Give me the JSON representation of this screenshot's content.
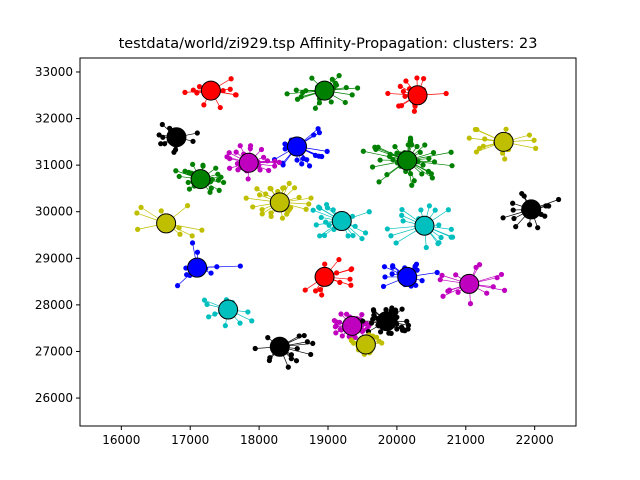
{
  "chart_data": {
    "type": "scatter",
    "title": "testdata/world/zi929.tsp Affinity-Propagation: clusters: 23",
    "xlabel": "",
    "ylabel": "",
    "xlim": [
      15400,
      22600
    ],
    "ylim": [
      25400,
      33300
    ],
    "xticks": [
      16000,
      17000,
      18000,
      19000,
      20000,
      21000,
      22000
    ],
    "yticks": [
      26000,
      27000,
      28000,
      29000,
      30000,
      31000,
      32000,
      33000
    ],
    "grid": false,
    "legend": "none",
    "colors": {
      "red": "#ff0000",
      "green": "#008000",
      "blue": "#0000ff",
      "black": "#000000",
      "magenta": "#bf00bf",
      "olive": "#bfbf00",
      "cyan": "#00bfbf"
    },
    "clusters": [
      {
        "color": "red",
        "center": [
          17300,
          32600
        ],
        "spread": 450,
        "n": 14,
        "seed": 1
      },
      {
        "color": "green",
        "center": [
          18950,
          32600
        ],
        "spread": 550,
        "n": 22,
        "seed": 2
      },
      {
        "color": "red",
        "center": [
          20300,
          32500
        ],
        "spread": 450,
        "n": 16,
        "seed": 3
      },
      {
        "color": "black",
        "center": [
          16800,
          31600
        ],
        "spread": 400,
        "n": 16,
        "seed": 4
      },
      {
        "color": "blue",
        "center": [
          18550,
          31400
        ],
        "spread": 550,
        "n": 22,
        "seed": 5
      },
      {
        "color": "magenta",
        "center": [
          17850,
          31050
        ],
        "spread": 450,
        "n": 30,
        "seed": 6
      },
      {
        "color": "green",
        "center": [
          20150,
          31100
        ],
        "spread": 700,
        "n": 45,
        "seed": 7
      },
      {
        "color": "olive",
        "center": [
          21550,
          31500
        ],
        "spread": 550,
        "n": 18,
        "seed": 8
      },
      {
        "color": "green",
        "center": [
          17150,
          30700
        ],
        "spread": 420,
        "n": 28,
        "seed": 9
      },
      {
        "color": "olive",
        "center": [
          18300,
          30200
        ],
        "spread": 500,
        "n": 30,
        "seed": 10
      },
      {
        "color": "cyan",
        "center": [
          19200,
          29800
        ],
        "spread": 550,
        "n": 24,
        "seed": 11
      },
      {
        "color": "cyan",
        "center": [
          20400,
          29700
        ],
        "spread": 600,
        "n": 24,
        "seed": 12
      },
      {
        "color": "black",
        "center": [
          21950,
          30050
        ],
        "spread": 500,
        "n": 20,
        "seed": 13
      },
      {
        "color": "olive",
        "center": [
          16650,
          29750
        ],
        "spread": 650,
        "n": 10,
        "seed": 14
      },
      {
        "color": "blue",
        "center": [
          17100,
          28800
        ],
        "spread": 650,
        "n": 14,
        "seed": 15
      },
      {
        "color": "red",
        "center": [
          18950,
          28600
        ],
        "spread": 500,
        "n": 14,
        "seed": 16
      },
      {
        "color": "blue",
        "center": [
          20150,
          28600
        ],
        "spread": 450,
        "n": 24,
        "seed": 17
      },
      {
        "color": "magenta",
        "center": [
          21050,
          28450
        ],
        "spread": 550,
        "n": 18,
        "seed": 18
      },
      {
        "color": "cyan",
        "center": [
          17550,
          27900
        ],
        "spread": 450,
        "n": 14,
        "seed": 19
      },
      {
        "color": "magenta",
        "center": [
          19350,
          27550
        ],
        "spread": 350,
        "n": 40,
        "seed": 20
      },
      {
        "color": "black",
        "center": [
          19850,
          27650
        ],
        "spread": 380,
        "n": 45,
        "seed": 21
      },
      {
        "color": "olive",
        "center": [
          19550,
          27150
        ],
        "spread": 250,
        "n": 30,
        "seed": 22
      },
      {
        "color": "black",
        "center": [
          18300,
          27100
        ],
        "spread": 550,
        "n": 14,
        "seed": 23
      }
    ]
  }
}
